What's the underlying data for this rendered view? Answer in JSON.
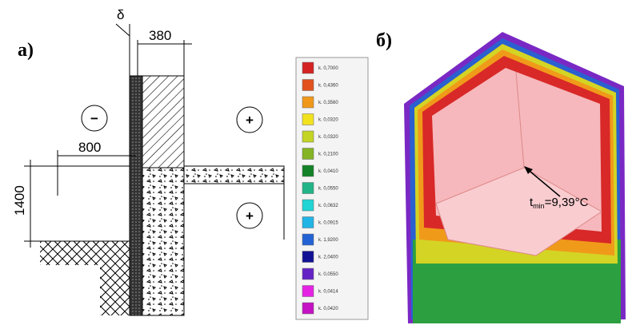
{
  "panel_a": {
    "label": "а)",
    "delta": "δ",
    "dim_wall": "380",
    "dim_offset": "800",
    "dim_height": "1400",
    "sign_minus": "−",
    "sign_plus_1": "+",
    "sign_plus_2": "+"
  },
  "legend": {
    "items": [
      {
        "label": "k. 0,7000",
        "color": "#d42222"
      },
      {
        "label": "k. 0,4360",
        "color": "#e0521e"
      },
      {
        "label": "k. 0,3560",
        "color": "#f0981a"
      },
      {
        "label": "k. 0,0320",
        "color": "#f2e21e"
      },
      {
        "label": "k. 0,0320",
        "color": "#c4d424"
      },
      {
        "label": "k. 0,2100",
        "color": "#84b424"
      },
      {
        "label": "k. 0,0410",
        "color": "#148228"
      },
      {
        "label": "k. 0,0550",
        "color": "#22b486"
      },
      {
        "label": "k. 0,0632",
        "color": "#22d4d4"
      },
      {
        "label": "k. 0,0915",
        "color": "#22b4e4"
      },
      {
        "label": "k. 1,9200",
        "color": "#2262d4"
      },
      {
        "label": "k. 2,0400",
        "color": "#121294"
      },
      {
        "label": "k. 0,0550",
        "color": "#6422c4"
      },
      {
        "label": "k. 0,0414",
        "color": "#e422e4"
      },
      {
        "label": "k. 0,0420",
        "color": "#c412c4"
      }
    ]
  },
  "panel_b": {
    "label": "б)",
    "annotation_t": "t",
    "annotation_sub": "min",
    "annotation_rest": "=9,39°C"
  }
}
